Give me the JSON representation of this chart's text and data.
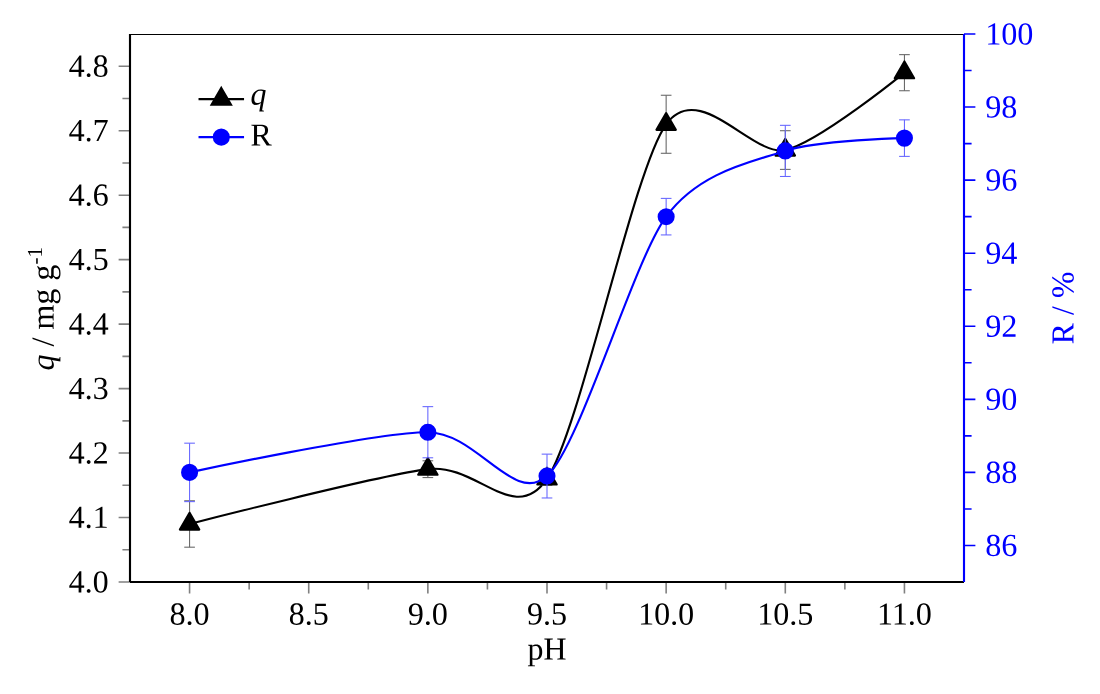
{
  "chart_data": {
    "type": "line",
    "xlabel": "pH",
    "ylabel": "*q* / mg g$^{-1}$",
    "y2label": "R / %",
    "x": [
      8.0,
      9.0,
      9.5,
      10.0,
      10.5,
      11.0
    ],
    "series": [
      {
        "name": "q",
        "color": "#000000",
        "marker": "triangle",
        "values": [
          4.09,
          4.175,
          4.16,
          4.71,
          4.67,
          4.79
        ],
        "errors": [
          0.036,
          0.013,
          0.01,
          0.045,
          0.03,
          0.028
        ]
      },
      {
        "name": "R",
        "color": "#0000ff",
        "marker": "circle",
        "axis": "y2",
        "values": [
          88.0,
          89.1,
          87.9,
          95.0,
          96.8,
          97.15
        ],
        "errors": [
          0.8,
          0.7,
          0.6,
          0.5,
          0.7,
          0.5
        ]
      }
    ],
    "xlim": [
      7.75,
      11.25
    ],
    "xticks": [
      {
        "value": 8,
        "label": "8.0"
      },
      {
        "value": 8.5,
        "label": "8.5"
      },
      {
        "value": 9,
        "label": "9.0"
      },
      {
        "value": 9.5,
        "label": "9.5"
      },
      {
        "value": 10,
        "label": "10.0"
      },
      {
        "value": 10.5,
        "label": "10.5"
      },
      {
        "value": 11,
        "label": "11.0"
      }
    ],
    "ylim": [
      4.0,
      4.85
    ],
    "yticks": [
      {
        "value": 4,
        "label": "4.0"
      },
      4.1,
      4.2,
      4.3,
      4.4,
      4.5,
      4.6,
      4.7,
      4.8
    ],
    "y2lim": [
      85,
      100
    ],
    "y2ticks": [
      86,
      88,
      90,
      92,
      94,
      96,
      98,
      100
    ],
    "legend": "top left",
    "grid": false
  }
}
